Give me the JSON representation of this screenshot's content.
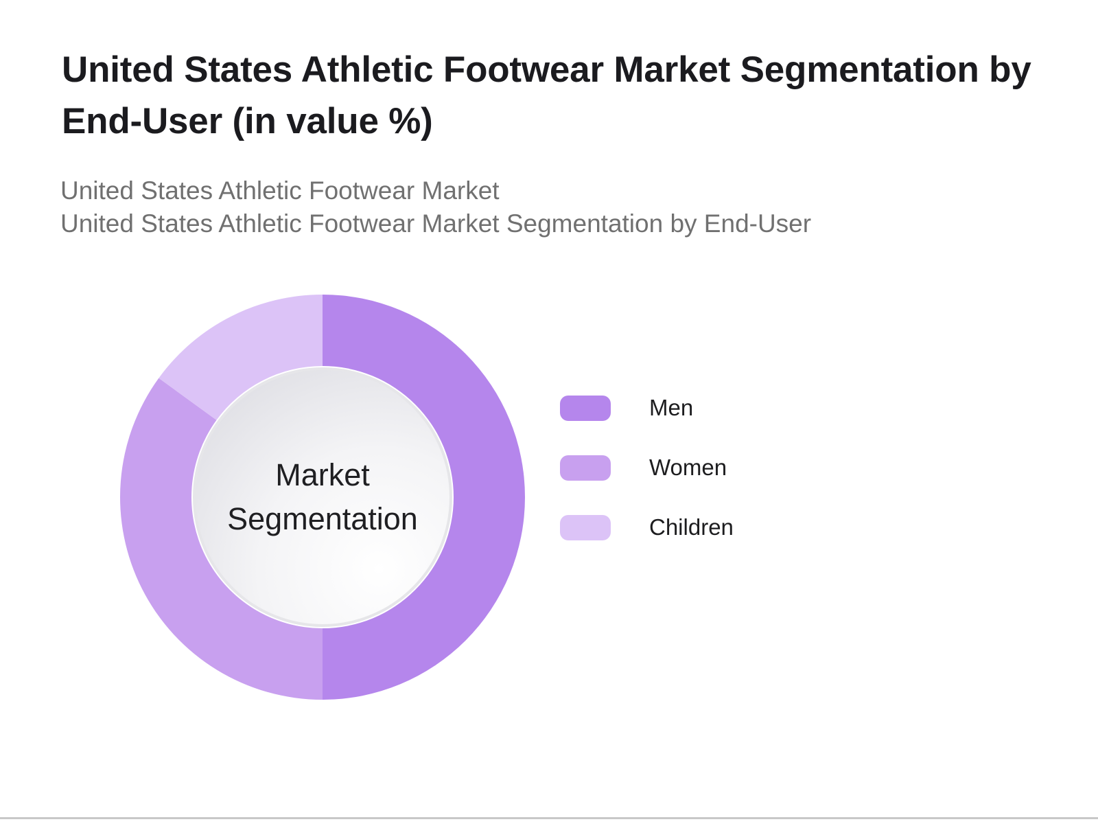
{
  "header": {
    "title": "United States Athletic Footwear Market Segmentation by End-User (in value %)",
    "subtitles": [
      "United States Athletic Footwear Market",
      "United States Athletic Footwear Market Segmentation by End-User"
    ]
  },
  "chart_data": {
    "type": "pie",
    "variant": "donut",
    "title": "United States Athletic Footwear Market Segmentation by End-User (in value %)",
    "center_label": "Market Segmentation",
    "legend_position": "right",
    "categories": [
      "Men",
      "Women",
      "Children"
    ],
    "values": [
      50,
      35,
      15
    ],
    "colors": [
      "#b586ec",
      "#c8a0ef",
      "#dcc3f7"
    ]
  }
}
